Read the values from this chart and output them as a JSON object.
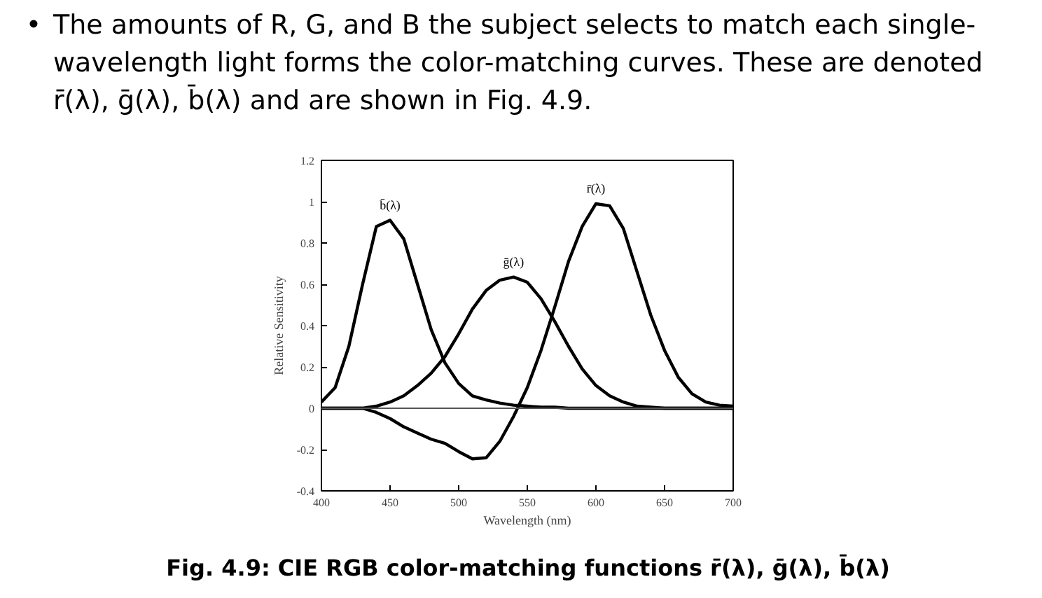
{
  "chart_data": {
    "type": "line",
    "annotations": [
      "•\tThe amounts of R, G, and B the subject selects to match each single-wavelength light forms the color-matching curves.  These are denoted r̄(λ), ḡ(λ), b̄(λ)  and are shown in Fig. 4.9.",
      "Fig. 4.9: CIE RGB color-matching functions r̄(λ), ḡ(λ), b̄(λ)"
    ],
    "xlabel": "Wavelength (nm)",
    "ylabel": "Relative Sensitivity",
    "x": [
      400,
      410,
      420,
      430,
      440,
      450,
      460,
      470,
      480,
      490,
      500,
      510,
      520,
      530,
      540,
      550,
      560,
      570,
      580,
      590,
      600,
      610,
      620,
      630,
      640,
      650,
      660,
      670,
      680,
      690,
      700
    ],
    "series": [
      {
        "name": "b̄(λ)",
        "color": "#000000",
        "values": [
          0.03,
          0.1,
          0.3,
          0.6,
          0.88,
          0.91,
          0.82,
          0.6,
          0.38,
          0.22,
          0.12,
          0.06,
          0.04,
          0.025,
          0.015,
          0.01,
          0.005,
          0.005,
          0,
          0,
          0,
          0,
          0,
          0,
          0,
          0,
          0,
          0,
          0,
          0,
          0
        ]
      },
      {
        "name": "ḡ(λ)",
        "color": "#000000",
        "values": [
          0,
          0,
          0,
          0,
          0.01,
          0.03,
          0.06,
          0.11,
          0.17,
          0.25,
          0.36,
          0.48,
          0.57,
          0.62,
          0.635,
          0.61,
          0.53,
          0.42,
          0.3,
          0.19,
          0.11,
          0.06,
          0.03,
          0.01,
          0.005,
          0,
          0,
          0,
          0,
          0,
          0
        ]
      },
      {
        "name": "r̄(λ)",
        "color": "#000000",
        "values": [
          0,
          0,
          0,
          0,
          -0.02,
          -0.05,
          -0.09,
          -0.12,
          -0.15,
          -0.17,
          -0.21,
          -0.245,
          -0.24,
          -0.16,
          -0.04,
          0.1,
          0.28,
          0.49,
          0.71,
          0.88,
          0.99,
          0.98,
          0.87,
          0.66,
          0.45,
          0.28,
          0.15,
          0.07,
          0.03,
          0.015,
          0.01
        ]
      }
    ],
    "xlim": [
      400,
      700
    ],
    "ylim": [
      -0.4,
      1.2
    ],
    "xticks": [
      400,
      450,
      500,
      550,
      600,
      650,
      700
    ],
    "yticks": [
      -0.4,
      -0.2,
      0,
      0.2,
      0.4,
      0.6,
      0.8,
      1,
      1.2
    ],
    "ref_lines": [
      {
        "axis": "y",
        "value": 0,
        "color": "#555555"
      }
    ],
    "line_style": "solid",
    "marker": "none",
    "grid": false
  }
}
